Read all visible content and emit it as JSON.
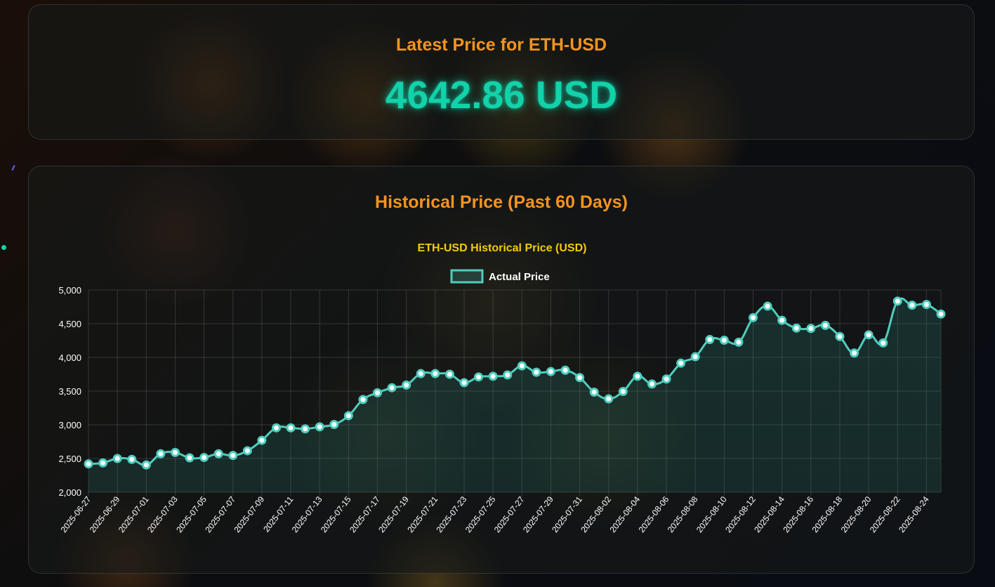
{
  "latest": {
    "title": "Latest Price for ETH-USD",
    "price": "4642.86 USD"
  },
  "historical": {
    "title": "Historical Price (Past 60 Days)"
  },
  "colors": {
    "accent": "#f5941e",
    "price": "#12d2aa",
    "line": "#4fcdbe",
    "chart_title": "#f2cc0c"
  },
  "chart_data": {
    "type": "line",
    "title": "ETH-USD Historical Price (USD)",
    "xlabel": "",
    "ylabel": "",
    "ylim": [
      2000,
      5000
    ],
    "yticks": [
      "5,000",
      "4,500",
      "4,000",
      "3,500",
      "3,000",
      "2,500",
      "2,000"
    ],
    "ytick_values": [
      5000,
      4500,
      4000,
      3500,
      3000,
      2500,
      2000
    ],
    "legend": {
      "position": "top-center"
    },
    "grid": true,
    "x": [
      "2025-06-27",
      "2025-06-28",
      "2025-06-29",
      "2025-06-30",
      "2025-07-01",
      "2025-07-02",
      "2025-07-03",
      "2025-07-04",
      "2025-07-05",
      "2025-07-06",
      "2025-07-07",
      "2025-07-08",
      "2025-07-09",
      "2025-07-10",
      "2025-07-11",
      "2025-07-12",
      "2025-07-13",
      "2025-07-14",
      "2025-07-15",
      "2025-07-16",
      "2025-07-17",
      "2025-07-18",
      "2025-07-19",
      "2025-07-20",
      "2025-07-21",
      "2025-07-22",
      "2025-07-23",
      "2025-07-24",
      "2025-07-25",
      "2025-07-26",
      "2025-07-27",
      "2025-07-28",
      "2025-07-29",
      "2025-07-30",
      "2025-07-31",
      "2025-08-01",
      "2025-08-02",
      "2025-08-03",
      "2025-08-04",
      "2025-08-05",
      "2025-08-06",
      "2025-08-07",
      "2025-08-08",
      "2025-08-09",
      "2025-08-10",
      "2025-08-11",
      "2025-08-12",
      "2025-08-13",
      "2025-08-14",
      "2025-08-15",
      "2025-08-16",
      "2025-08-17",
      "2025-08-18",
      "2025-08-19",
      "2025-08-20",
      "2025-08-21",
      "2025-08-22",
      "2025-08-23",
      "2025-08-24",
      "2025-08-25"
    ],
    "xtick_labels": [
      "2025-06-27",
      "2025-06-29",
      "2025-07-01",
      "2025-07-03",
      "2025-07-05",
      "2025-07-07",
      "2025-07-09",
      "2025-07-11",
      "2025-07-13",
      "2025-07-15",
      "2025-07-17",
      "2025-07-19",
      "2025-07-21",
      "2025-07-23",
      "2025-07-25",
      "2025-07-27",
      "2025-07-29",
      "2025-07-31",
      "2025-08-02",
      "2025-08-04",
      "2025-08-06",
      "2025-08-08",
      "2025-08-10",
      "2025-08-12",
      "2025-08-14",
      "2025-08-16",
      "2025-08-18",
      "2025-08-20",
      "2025-08-22",
      "2025-08-24"
    ],
    "series": [
      {
        "name": "Actual Price",
        "values": [
          2420,
          2435,
          2500,
          2487,
          2405,
          2570,
          2590,
          2510,
          2515,
          2570,
          2545,
          2615,
          2770,
          2955,
          2955,
          2940,
          2970,
          3005,
          3135,
          3375,
          3475,
          3550,
          3590,
          3760,
          3760,
          3750,
          3625,
          3710,
          3720,
          3740,
          3875,
          3780,
          3790,
          3810,
          3700,
          3485,
          3385,
          3495,
          3720,
          3605,
          3680,
          3915,
          4010,
          4265,
          4255,
          4225,
          4590,
          4760,
          4550,
          4435,
          4430,
          4475,
          4310,
          4065,
          4335,
          4215,
          4835,
          4775,
          4785,
          4642.86
        ]
      }
    ]
  }
}
